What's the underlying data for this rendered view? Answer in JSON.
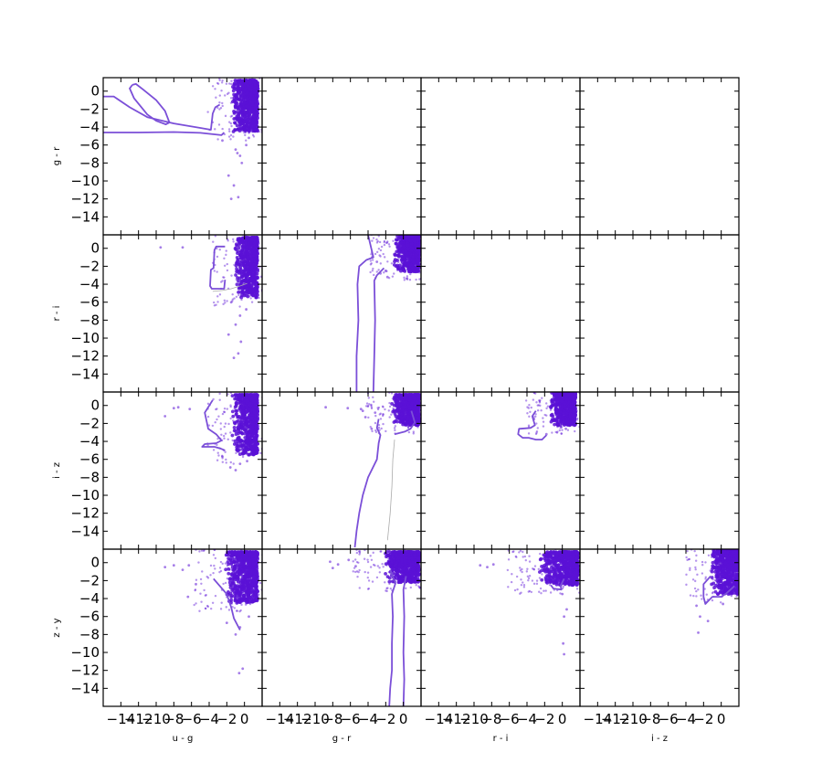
{
  "chart_data": {
    "type": "scatter",
    "layout": "4x4 lower-triangular corner plot",
    "point_color": "#5b12d6",
    "contour_color": "#7b4fd8",
    "contour_color_light": "#aaaaaa",
    "row_labels": [
      "g - r",
      "r - i",
      "i - z",
      "z - y"
    ],
    "col_labels": [
      "u - g",
      "g - r",
      "r - i",
      "i - z"
    ],
    "xlim": [
      -16,
      2
    ],
    "ylim": [
      -16,
      1.5
    ],
    "y_ticks": [
      0,
      -2,
      -4,
      -6,
      -8,
      -10,
      -12,
      -14
    ],
    "x_ticks": [
      -14,
      -12,
      -10,
      -8,
      -6,
      -4,
      -2,
      0
    ],
    "y_tick_labels": [
      "0",
      "−2",
      "−4",
      "−6",
      "−8",
      "−10",
      "−12",
      "−14"
    ],
    "x_tick_labels": [
      "−14",
      "−12",
      "−10",
      "−8",
      "−6",
      "−4",
      "−2",
      "0"
    ],
    "panels": [
      {
        "row": 0,
        "col": 0,
        "x_label": "u - g",
        "y_label": "g - r",
        "core": {
          "x": [
            -3,
            1.5
          ],
          "y": [
            -4.5,
            1.2
          ]
        },
        "outliers": [
          [
            -1,
            -6.5
          ],
          [
            -0.5,
            -7.2
          ],
          [
            -1.2,
            -10.5
          ],
          [
            -0.7,
            -11.8
          ],
          [
            -1.5,
            -12
          ],
          [
            -0.3,
            -8
          ],
          [
            0.2,
            -6
          ],
          [
            -2.5,
            -5.5
          ],
          [
            -1.8,
            -9.4
          ],
          [
            -0.8,
            -6.9
          ],
          [
            0.5,
            -5.2
          ]
        ],
        "contours": [
          {
            "shade": "dark",
            "pts": [
              [
                -16,
                -0.6
              ],
              [
                -14.8,
                -0.6
              ],
              [
                -13,
                -1.8
              ],
              [
                -11,
                -2.9
              ],
              [
                -8,
                -3.6
              ],
              [
                -5,
                -4.1
              ],
              [
                -3.8,
                -4.3
              ],
              [
                -3.6,
                -2.5
              ],
              [
                -3.3,
                -1.8
              ],
              [
                -2.8,
                -1.5
              ]
            ]
          },
          {
            "shade": "dark",
            "pts": [
              [
                -12.7,
                0.7
              ],
              [
                -12.3,
                0.8
              ],
              [
                -11.5,
                0.2
              ],
              [
                -10,
                -1
              ],
              [
                -9,
                -2.2
              ],
              [
                -8.5,
                -3.5
              ],
              [
                -8.9,
                -3.7
              ],
              [
                -10,
                -3.3
              ],
              [
                -11,
                -2.6
              ],
              [
                -12.5,
                -0.8
              ],
              [
                -13,
                0.3
              ],
              [
                -12.7,
                0.7
              ]
            ]
          },
          {
            "shade": "dark",
            "pts": [
              [
                -16,
                -4.6
              ],
              [
                -12,
                -4.6
              ],
              [
                -8,
                -4.55
              ],
              [
                -5,
                -4.65
              ],
              [
                -2.6,
                -4.9
              ],
              [
                -2.3,
                -4.6
              ]
            ]
          }
        ]
      },
      {
        "row": 1,
        "col": 0,
        "x_label": "u - g",
        "y_label": "r - i",
        "core": {
          "x": [
            -2.5,
            1.5
          ],
          "y": [
            -5.5,
            1.2
          ]
        },
        "outliers": [
          [
            -9.5,
            0.1
          ],
          [
            -7,
            0.1
          ],
          [
            -0.5,
            -7.5
          ],
          [
            -1,
            -8.5
          ],
          [
            -0.7,
            -11.7
          ],
          [
            -1.2,
            -12.2
          ],
          [
            0.2,
            -6.8
          ],
          [
            -1.5,
            -6
          ],
          [
            -1.8,
            -9.6
          ],
          [
            -0.4,
            -10.4
          ]
        ],
        "contours": [
          {
            "shade": "dark",
            "pts": [
              [
                -2.2,
                0.2
              ],
              [
                -3.2,
                0.2
              ],
              [
                -3.4,
                -0.2
              ],
              [
                -3.5,
                -2.2
              ],
              [
                -3.8,
                -2.4
              ],
              [
                -3.9,
                -4.2
              ],
              [
                -3.7,
                -4.5
              ],
              [
                -2.3,
                -4.5
              ],
              [
                -2.2,
                -3.5
              ]
            ]
          },
          {
            "shade": "light",
            "pts": [
              [
                -3.6,
                -4.8
              ],
              [
                -2.5,
                -4.7
              ],
              [
                -1.5,
                -4.5
              ],
              [
                -0.5,
                -4.2
              ],
              [
                0.3,
                -3.9
              ]
            ]
          }
        ]
      },
      {
        "row": 1,
        "col": 1,
        "x_label": "g - r",
        "y_label": "r - i",
        "core": {
          "x": [
            -2.8,
            1.8
          ],
          "y": [
            -2.6,
            1.4
          ]
        },
        "outliers": [
          [
            -2.6,
            -2.8
          ],
          [
            -3,
            -1.5
          ],
          [
            -1.8,
            -3.2
          ],
          [
            -2,
            -2.5
          ]
        ],
        "contours": [
          {
            "shade": "dark",
            "pts": [
              [
                -4,
                1.5
              ],
              [
                -3.4,
                -1
              ],
              [
                -4.2,
                -1.3
              ],
              [
                -5,
                -2
              ],
              [
                -5.2,
                -4
              ],
              [
                -5.1,
                -8
              ],
              [
                -5.3,
                -12
              ],
              [
                -5.3,
                -16
              ]
            ]
          },
          {
            "shade": "dark",
            "pts": [
              [
                -2.2,
                -2.2
              ],
              [
                -3,
                -3
              ],
              [
                -3.3,
                -3.6
              ],
              [
                -3.2,
                -8
              ],
              [
                -3.3,
                -12
              ],
              [
                -3.4,
                -16
              ]
            ]
          }
        ]
      },
      {
        "row": 2,
        "col": 0,
        "x_label": "u - g",
        "y_label": "i - z",
        "core": {
          "x": [
            -3,
            1.5
          ],
          "y": [
            -5.5,
            1.2
          ]
        },
        "outliers": [
          [
            -8,
            -0.3
          ],
          [
            -9,
            -1.2
          ],
          [
            -7.5,
            -0.2
          ],
          [
            -6.2,
            -0.4
          ],
          [
            -0.5,
            -6.5
          ],
          [
            0.3,
            -6.2
          ],
          [
            -1,
            -7.2
          ],
          [
            -1.6,
            -6.9
          ],
          [
            -2.5,
            -5.7
          ]
        ],
        "contours": [
          {
            "shade": "dark",
            "pts": [
              [
                -3.6,
                0.6
              ],
              [
                -4.5,
                -0.8
              ],
              [
                -4.1,
                -2.6
              ],
              [
                -3.2,
                -3.2
              ],
              [
                -2.6,
                -3.9
              ],
              [
                -3.2,
                -4.2
              ],
              [
                -4.5,
                -4.3
              ],
              [
                -4.8,
                -4.6
              ],
              [
                -3.4,
                -4.6
              ],
              [
                -2.7,
                -4.8
              ],
              [
                -2.2,
                -5
              ]
            ]
          }
        ]
      },
      {
        "row": 2,
        "col": 1,
        "x_label": "g - r",
        "y_label": "i - z",
        "core": {
          "x": [
            -3,
            1.8
          ],
          "y": [
            -2.2,
            1.2
          ]
        },
        "outliers": [
          [
            -6.3,
            -0.3
          ],
          [
            -8.8,
            -0.2
          ],
          [
            -4.6,
            -0.6
          ],
          [
            -3.2,
            -0.8
          ],
          [
            -4.8,
            -0.4
          ],
          [
            -3.6,
            -2.6
          ],
          [
            -4.3,
            -1.3
          ]
        ],
        "contours": [
          {
            "shade": "dark",
            "pts": [
              [
                -2.8,
                -1.5
              ],
              [
                -3,
                -2.5
              ],
              [
                -2.6,
                -3.3
              ],
              [
                -2.8,
                -4.2
              ],
              [
                -3,
                -6
              ],
              [
                -4,
                -8
              ],
              [
                -4.6,
                -10
              ],
              [
                -5,
                -12
              ],
              [
                -5.3,
                -14
              ],
              [
                -5.5,
                -15.8
              ]
            ]
          },
          {
            "shade": "dark",
            "pts": [
              [
                0.9,
                -0.6
              ],
              [
                1.3,
                -1.9
              ],
              [
                0.8,
                -2.6
              ],
              [
                0.2,
                -2.9
              ],
              [
                -1,
                -3.2
              ]
            ]
          },
          {
            "shade": "light",
            "pts": [
              [
                -1,
                -3.8
              ],
              [
                -1.2,
                -6
              ],
              [
                -1.3,
                -9
              ],
              [
                -1.5,
                -12
              ],
              [
                -1.8,
                -15
              ]
            ]
          }
        ]
      },
      {
        "row": 2,
        "col": 2,
        "x_label": "r - i",
        "y_label": "i - z",
        "core": {
          "x": [
            -3,
            1.5
          ],
          "y": [
            -2.2,
            1.4
          ]
        },
        "outliers": [
          [
            -1.8,
            -3.2
          ],
          [
            0.4,
            -2.6
          ],
          [
            -3.2,
            -1.5
          ]
        ],
        "contours": [
          {
            "shade": "dark",
            "pts": [
              [
                -3,
                -0.6
              ],
              [
                -3.4,
                -1.2
              ],
              [
                -3.1,
                -2.2
              ],
              [
                -3.6,
                -2.5
              ],
              [
                -4.9,
                -2.6
              ],
              [
                -5,
                -3.2
              ],
              [
                -4.5,
                -3.6
              ],
              [
                -3.8,
                -3.6
              ],
              [
                -3,
                -3.8
              ],
              [
                -2.3,
                -3.8
              ],
              [
                -1.8,
                -3.3
              ]
            ]
          }
        ]
      },
      {
        "row": 3,
        "col": 0,
        "x_label": "u - g",
        "y_label": "z - y",
        "core": {
          "x": [
            -4.5,
            1.5
          ],
          "y": [
            -4.5,
            1.2
          ]
        },
        "outliers": [
          [
            -9,
            -0.5
          ],
          [
            -8,
            -0.3
          ],
          [
            -6.3,
            -0.3
          ],
          [
            -7,
            -0.8
          ],
          [
            -6.4,
            -3.8
          ],
          [
            -5.5,
            -2.4
          ],
          [
            -0.5,
            -7.2
          ],
          [
            -1,
            -8
          ],
          [
            -0.6,
            -12.3
          ],
          [
            -0.2,
            -11.8
          ],
          [
            0.5,
            -6
          ],
          [
            -2,
            -6.7
          ]
        ],
        "contours": [
          {
            "shade": "dark",
            "pts": [
              [
                -3.5,
                -1.8
              ],
              [
                -2,
                -3.5
              ],
              [
                -1.5,
                -5
              ],
              [
                -1.2,
                -6.2
              ],
              [
                -0.5,
                -7.5
              ]
            ]
          }
        ]
      },
      {
        "row": 3,
        "col": 1,
        "x_label": "g - r",
        "y_label": "z - y",
        "core": {
          "x": [
            -4.5,
            1.8
          ],
          "y": [
            -2.2,
            1.2
          ]
        },
        "outliers": [
          [
            -8.3,
            0.1
          ],
          [
            -7.4,
            -0.2
          ],
          [
            -6.2,
            0.3
          ],
          [
            -5.4,
            -0.4
          ],
          [
            -8,
            -0.6
          ]
        ],
        "contours": [
          {
            "shade": "dark",
            "pts": [
              [
                -1.5,
                -0.8
              ],
              [
                -0.9,
                -2.3
              ],
              [
                -1.3,
                -3.5
              ],
              [
                -1.2,
                -6
              ],
              [
                -1.3,
                -9
              ],
              [
                -1.3,
                -12
              ],
              [
                -1.5,
                -14
              ],
              [
                -1.6,
                -16
              ]
            ]
          },
          {
            "shade": "dark",
            "pts": [
              [
                0.3,
                -1.5
              ],
              [
                0,
                -3
              ],
              [
                0.1,
                -6
              ],
              [
                0,
                -10
              ],
              [
                0.1,
                -13
              ],
              [
                0,
                -16
              ]
            ]
          }
        ]
      },
      {
        "row": 3,
        "col": 2,
        "x_label": "r - i",
        "y_label": "z - y",
        "core": {
          "x": [
            -5,
            1.8
          ],
          "y": [
            -2.5,
            1.2
          ]
        },
        "outliers": [
          [
            -8.5,
            -0.5
          ],
          [
            -7.8,
            -0.2
          ],
          [
            -9.3,
            -0.3
          ],
          [
            0,
            -3.5
          ],
          [
            0.2,
            -6
          ],
          [
            0.5,
            -5.2
          ],
          [
            0.2,
            -10.2
          ],
          [
            0.1,
            -9
          ]
        ],
        "contours": [
          {
            "shade": "dark",
            "pts": [
              [
                0.2,
                -1.8
              ],
              [
                -0.2,
                -2.6
              ],
              [
                -0.1,
                -3
              ],
              [
                -1,
                -2.9
              ],
              [
                -1.3,
                -2.5
              ]
            ]
          }
        ]
      },
      {
        "row": 3,
        "col": 3,
        "x_label": "i - z",
        "y_label": "z - y",
        "core": {
          "x": [
            -3,
            2
          ],
          "y": [
            -3.5,
            1.4
          ]
        },
        "outliers": [
          [
            -2.8,
            -4.8
          ],
          [
            -1.5,
            -6.5
          ],
          [
            -2.4,
            -6
          ],
          [
            -2.6,
            -7.8
          ],
          [
            0.2,
            -4.6
          ]
        ],
        "contours": [
          {
            "shade": "dark",
            "pts": [
              [
                -1.2,
                -1.5
              ],
              [
                -2,
                -2.4
              ],
              [
                -2,
                -3.8
              ],
              [
                -1.8,
                -4.6
              ],
              [
                -1.4,
                -4.2
              ],
              [
                -1,
                -3.8
              ],
              [
                0,
                -3.8
              ],
              [
                0.6,
                -3.4
              ],
              [
                1.5,
                -2.6
              ]
            ]
          }
        ]
      }
    ]
  }
}
